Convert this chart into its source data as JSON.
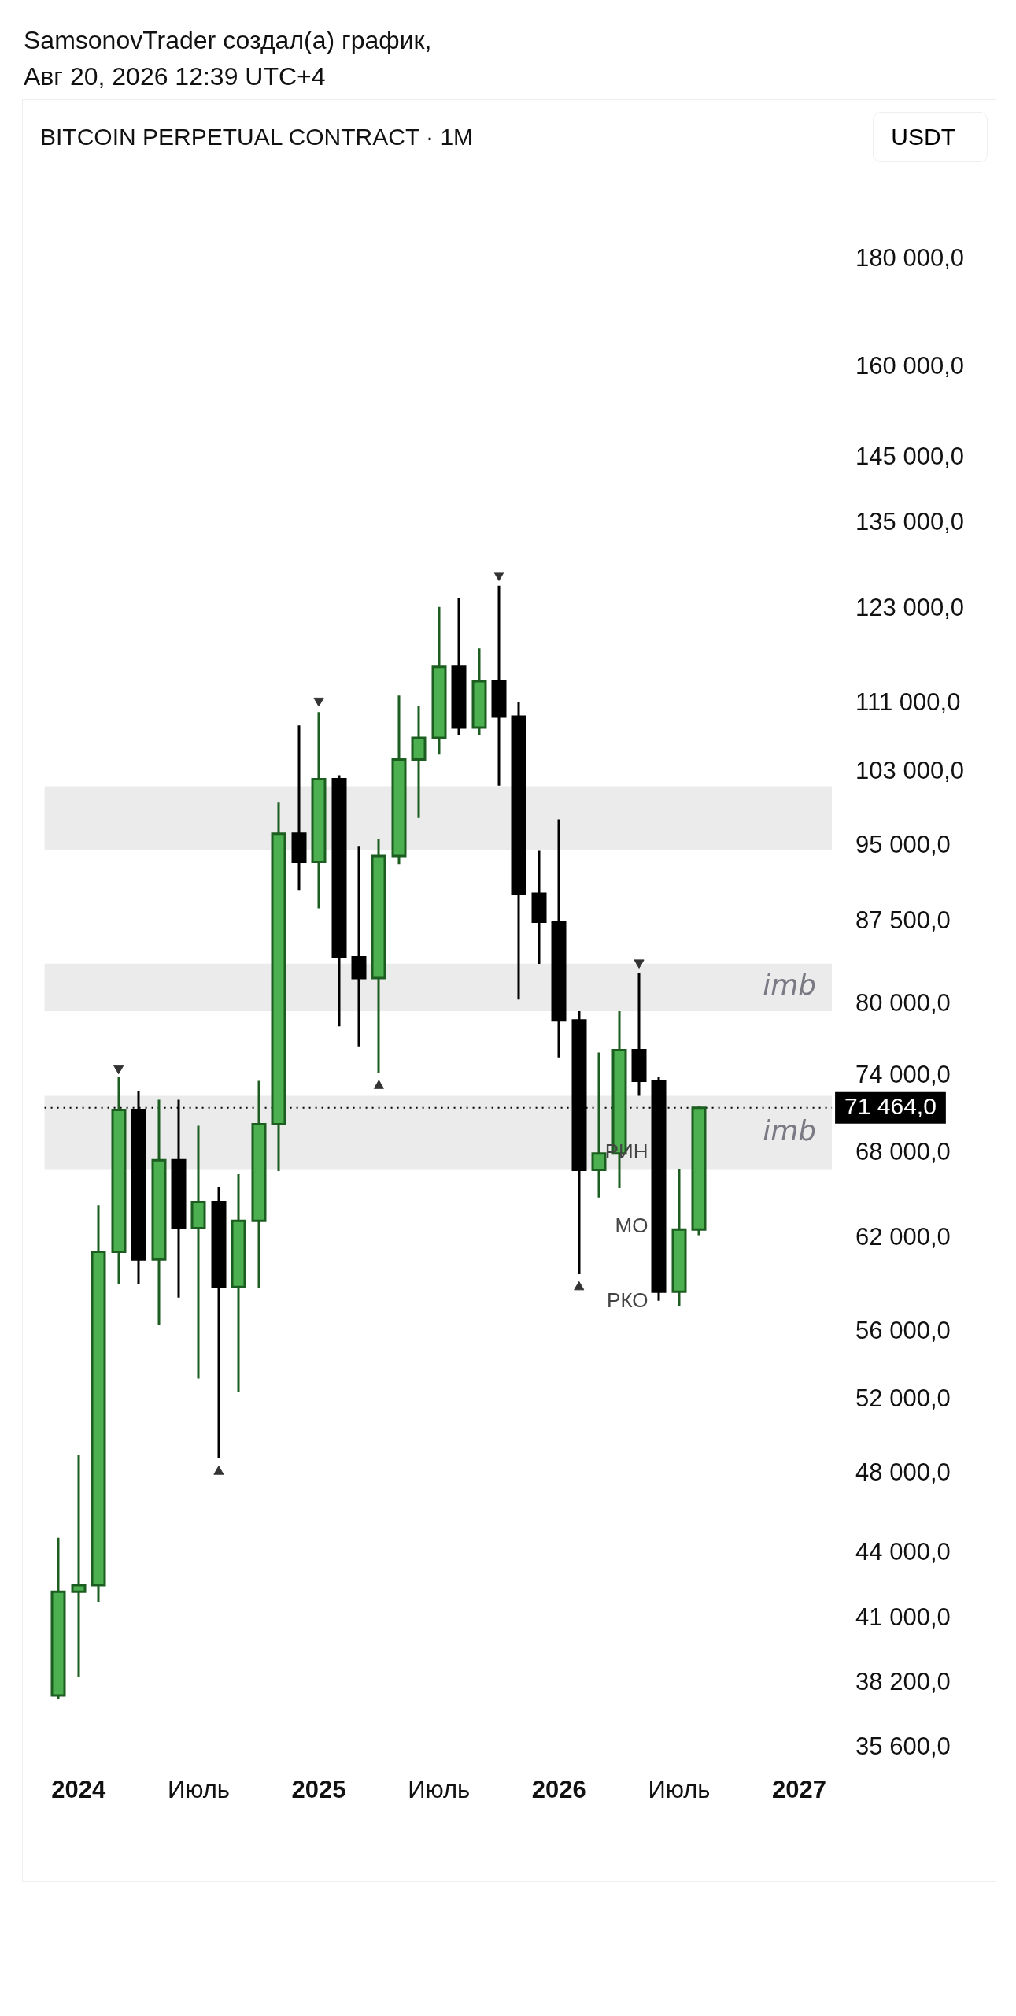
{
  "chart_data": {
    "type": "candlestick",
    "title": "BITCOIN PERPETUAL CONTRACT · 1M",
    "ylabel": "USDT",
    "annotations": [
      "SamsonovTrader создал(а) график,",
      "Авг 20, 2026 12:39 UTC+4",
      "РИН",
      "МО",
      "РКО"
    ],
    "x": [
      "2023-12",
      "2024-01",
      "2024-02",
      "2024-03",
      "2024-04",
      "2024-05",
      "2024-06",
      "2024-07",
      "2024-08",
      "2024-09",
      "2024-10",
      "2024-11",
      "2024-12",
      "2025-01",
      "2025-02",
      "2025-03",
      "2025-04",
      "2025-05",
      "2025-06",
      "2025-07",
      "2025-08",
      "2025-09",
      "2025-10",
      "2025-11",
      "2025-12",
      "2026-01",
      "2026-02",
      "2026-03",
      "2026-04",
      "2026-05",
      "2026-06",
      "2026-07",
      "2026-08"
    ],
    "ohlc": [
      [
        37700,
        44700,
        37600,
        42200
      ],
      [
        42200,
        48900,
        38500,
        42500
      ],
      [
        42500,
        64200,
        41800,
        61100
      ],
      [
        61100,
        73800,
        59100,
        71300
      ],
      [
        71300,
        72700,
        59100,
        60600
      ],
      [
        60600,
        72000,
        56500,
        67500
      ],
      [
        67500,
        72000,
        58200,
        62700
      ],
      [
        62700,
        70000,
        53300,
        64500
      ],
      [
        64500,
        65500,
        48900,
        58800
      ],
      [
        58800,
        66400,
        52500,
        63200
      ],
      [
        63200,
        73500,
        58800,
        70200
      ],
      [
        70200,
        99500,
        66800,
        96300
      ],
      [
        96300,
        108200,
        90700,
        93400
      ],
      [
        93400,
        109800,
        88900,
        102200
      ],
      [
        102200,
        102500,
        78200,
        84200
      ],
      [
        84200,
        94900,
        76500,
        82300
      ],
      [
        82300,
        95600,
        74300,
        94000
      ],
      [
        94000,
        111800,
        93300,
        104400
      ],
      [
        104400,
        110500,
        98100,
        106900
      ],
      [
        106900,
        123100,
        105100,
        115500
      ],
      [
        115500,
        124300,
        107400,
        108100
      ],
      [
        108100,
        117700,
        107400,
        113700
      ],
      [
        113700,
        126000,
        101600,
        109400
      ],
      [
        109400,
        111000,
        80500,
        90200
      ],
      [
        90200,
        94400,
        83700,
        87500
      ],
      [
        87500,
        97700,
        75600,
        78600
      ],
      [
        78600,
        79300,
        59700,
        66800
      ],
      [
        66800,
        75800,
        64900,
        68000
      ],
      [
        68000,
        79300,
        65600,
        76100
      ],
      [
        76100,
        82700,
        72500,
        73600
      ],
      [
        73600,
        73800,
        58000,
        58500
      ],
      [
        58500,
        66800,
        57700,
        62600
      ],
      [
        62600,
        71464,
        62300,
        71464
      ]
    ],
    "colors": [
      "#4caf50",
      "#4caf50",
      "#4caf50",
      "#4caf50",
      "#000000",
      "#4caf50",
      "#000000",
      "#4caf50",
      "#000000",
      "#4caf50",
      "#4caf50",
      "#4caf50",
      "#000000",
      "#4caf50",
      "#000000",
      "#000000",
      "#4caf50",
      "#4caf50",
      "#4caf50",
      "#4caf50",
      "#000000",
      "#4caf50",
      "#000000",
      "#000000",
      "#000000",
      "#000000",
      "#000000",
      "#4caf50",
      "#4caf50",
      "#000000",
      "#000000",
      "#4caf50",
      "#4caf50"
    ],
    "series": [
      {
        "type": "scatter",
        "color": "#333333",
        "x": [
          "2024-03",
          "2025-01",
          "2025-10",
          "2026-05"
        ],
        "values": [
          74600,
          111300,
          127600,
          83700
        ]
      },
      {
        "type": "scatter",
        "color": "#333333",
        "x": [
          "2024-08",
          "2025-04",
          "2026-02"
        ],
        "values": [
          48100,
          73200,
          58800
        ]
      }
    ],
    "marker": "triangle",
    "log": "y",
    "xlim": [
      "2023-11-10",
      "2027-02-20"
    ],
    "xticks": [
      {
        "value": "2024-01",
        "label": "2024"
      },
      {
        "value": "2024-07",
        "label": "Июль"
      },
      {
        "value": "2025-01",
        "label": "2025"
      },
      {
        "value": "2025-07",
        "label": "Июль"
      },
      {
        "value": "2026-01",
        "label": "2026"
      },
      {
        "value": "2026-07",
        "label": "Июль"
      },
      {
        "value": "2027-01",
        "label": "2027"
      }
    ],
    "ylim": [
      35600,
      180000
    ],
    "yticks": [
      {
        "value": 35600,
        "label": "35 600,0"
      },
      {
        "value": 38200,
        "label": "38 200,0"
      },
      {
        "value": 41000,
        "label": "41 000,0"
      },
      {
        "value": 44000,
        "label": "44 000,0"
      },
      {
        "value": 48000,
        "label": "48 000,0"
      },
      {
        "value": 52000,
        "label": "52 000,0"
      },
      {
        "value": 56000,
        "label": "56 000,0"
      },
      {
        "value": 62000,
        "label": "62 000,0"
      },
      {
        "value": 68000,
        "label": "68 000,0"
      },
      {
        "value": 74000,
        "label": "74 000,0"
      },
      {
        "value": 80000,
        "label": "80 000,0"
      },
      {
        "value": 87500,
        "label": "87 500,0"
      },
      {
        "value": 95000,
        "label": "95 000,0"
      },
      {
        "value": 103000,
        "label": "103 000,0"
      },
      {
        "value": 111000,
        "label": "111 000,0"
      },
      {
        "value": 123000,
        "label": "123 000,0"
      },
      {
        "value": 135000,
        "label": "135 000,0"
      },
      {
        "value": 145000,
        "label": "145 000,0"
      },
      {
        "value": 160000,
        "label": "160 000,0"
      },
      {
        "value": 180000,
        "label": "180 000,0"
      }
    ],
    "ref_lines": [
      {
        "axis": "y",
        "value": 71464,
        "label": "71 464,0",
        "color": "#000000",
        "line_style": "dotted"
      }
    ],
    "bands": [
      {
        "axis": "y",
        "from": 94600,
        "to": 101400,
        "label": null,
        "color": "#ebebeb"
      },
      {
        "axis": "y",
        "from": 79400,
        "to": 83600,
        "label": "imb",
        "color": "#ebebeb"
      },
      {
        "axis": "y",
        "from": 66800,
        "to": 72400,
        "label": "imb",
        "color": "#ebebeb"
      }
    ],
    "grid": false,
    "legend": false
  }
}
